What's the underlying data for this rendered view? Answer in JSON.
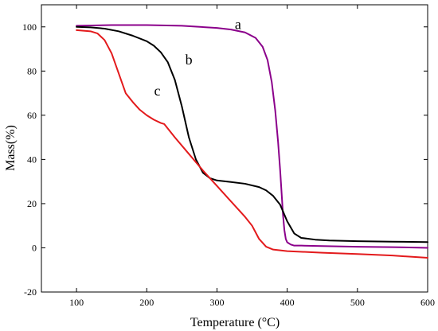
{
  "chart_data": {
    "type": "line",
    "title": "",
    "xlabel": "Temperature (°C)",
    "ylabel": "Mass(%)",
    "xlim": [
      50,
      600
    ],
    "ylim": [
      -20,
      110
    ],
    "xticks": [
      100,
      200,
      300,
      400,
      500,
      600
    ],
    "yticks": [
      -20,
      0,
      20,
      40,
      60,
      80,
      100
    ],
    "grid": false,
    "legend": "none",
    "series": [
      {
        "name": "a",
        "label_at": [
          330,
          99
        ],
        "color": "#8b008b",
        "x": [
          100,
          150,
          200,
          250,
          300,
          320,
          340,
          355,
          365,
          372,
          378,
          383,
          387,
          390,
          392,
          394,
          396,
          398,
          400,
          405,
          410,
          420,
          450,
          500,
          550,
          600
        ],
        "y": [
          100.5,
          100.8,
          100.8,
          100.5,
          99.5,
          98.8,
          97.5,
          95,
          91,
          85,
          75,
          62,
          48,
          35,
          25,
          15,
          8,
          4,
          2.5,
          1.5,
          1,
          1,
          0.8,
          0.5,
          0.3,
          0
        ]
      },
      {
        "name": "b",
        "label_at": [
          260,
          83
        ],
        "color": "#000000",
        "x": [
          100,
          120,
          140,
          160,
          180,
          200,
          210,
          220,
          230,
          240,
          250,
          260,
          270,
          280,
          290,
          300,
          320,
          340,
          360,
          370,
          380,
          390,
          400,
          410,
          420,
          440,
          460,
          500,
          550,
          600
        ],
        "y": [
          100,
          99.8,
          99.2,
          98,
          96,
          93.5,
          91.5,
          88.5,
          84,
          76,
          64,
          50,
          40,
          34,
          31.5,
          30.5,
          29.8,
          29,
          27.5,
          26,
          23.5,
          19.5,
          12,
          6.5,
          4.5,
          3.7,
          3.3,
          3,
          2.8,
          2.6
        ]
      },
      {
        "name": "c",
        "label_at": [
          215,
          69
        ],
        "color": "#e31a1c",
        "x": [
          100,
          120,
          130,
          140,
          150,
          160,
          170,
          180,
          190,
          200,
          210,
          220,
          225,
          240,
          260,
          280,
          300,
          320,
          340,
          350,
          355,
          360,
          370,
          380,
          400,
          450,
          500,
          550,
          600
        ],
        "y": [
          98.5,
          98,
          97,
          94,
          88,
          79,
          70,
          66,
          62.5,
          60,
          58,
          56.5,
          56,
          50,
          42.5,
          35,
          28,
          21,
          14,
          10,
          7,
          4,
          0.5,
          -0.8,
          -1.5,
          -2.2,
          -2.8,
          -3.5,
          -4.5
        ]
      }
    ]
  }
}
